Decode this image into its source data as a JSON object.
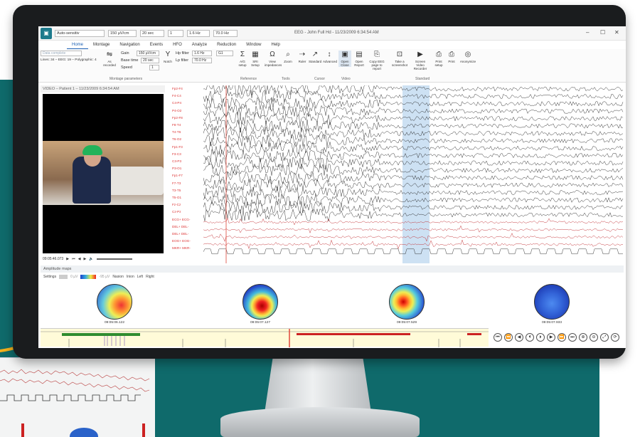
{
  "window": {
    "title": "EEG - John Full Hd - 11/23/2009 6:34:54 AM",
    "controls": {
      "minimize": "–",
      "maximize": "☐",
      "close": "✕"
    }
  },
  "toolbar": {
    "montage_combo": "Auto-sensitiv",
    "sensitivity_combo": "150 µV/cm",
    "timebase_combo": "20 sec",
    "speed_combo": "1",
    "lowfreq_combo": "1.6 Hz",
    "highfreq_combo": "70.0 Hz"
  },
  "tabs": [
    "Home",
    "Montage",
    "Navigation",
    "Events",
    "HFO",
    "Analyze",
    "Reduction",
    "Window",
    "Help"
  ],
  "ribbon": {
    "data_complete": "Data complete",
    "lines_info": "Lines: 34 – EEG: 19 – Polygraphic: 4",
    "as_recorded": "As recorded",
    "gain_label": "Gain",
    "gain_value": "150 µV/cm",
    "basetime_label": "Base time",
    "basetime_value": "20 sec",
    "speed_label": "Speed",
    "speed_value": "1",
    "notch_label": "Notch",
    "hp_label": "Hp filter",
    "hp_value": "1.6 Hz",
    "lp_label": "Lp filter",
    "lp_value": "70.0 Hz",
    "ref_value": "G1",
    "group_montage": "Montage parameters",
    "group_reference": "Reference",
    "group_tools": "Tools",
    "group_cursor": "Cursor",
    "group_video": "Video",
    "group_standard": "Standard",
    "buttons": [
      {
        "label": "A/G setup",
        "icon": "sigma-icon"
      },
      {
        "label": "SRI Setup",
        "icon": "grid-icon"
      },
      {
        "label": "View impedances",
        "icon": "omega-icon"
      },
      {
        "label": "Zoom",
        "icon": "magnifier-icon"
      },
      {
        "label": "Ruler",
        "icon": "ruler-icon"
      },
      {
        "label": "Standard",
        "icon": "cursor-icon"
      },
      {
        "label": "Advanced",
        "icon": "cursor-plus-icon"
      },
      {
        "label": "Open Close",
        "icon": "video-icon"
      },
      {
        "label": "Open Report",
        "icon": "report-icon"
      },
      {
        "label": "Copy EEG page to report",
        "icon": "copy-page-icon"
      },
      {
        "label": "Take a screenshot",
        "icon": "screenshot-icon"
      },
      {
        "label": "Screen Video Recorder",
        "icon": "recorder-icon"
      },
      {
        "label": "Print setup",
        "icon": "print-setup-icon"
      },
      {
        "label": "Print",
        "icon": "print-icon"
      },
      {
        "label": "Anonymize",
        "icon": "anonymize-icon"
      }
    ]
  },
  "video": {
    "header": "VIDEO – Patient 1 – 11/23/2009 6:34:54 AM",
    "time": "09:05:46.073"
  },
  "eeg": {
    "channels": [
      "Fp2-F4",
      "F4-C4",
      "C4-P4",
      "P4-O2",
      "Fp2-F8",
      "F8-T4",
      "T4-T6",
      "T6-O2",
      "Fp1-F3",
      "F3-C3",
      "C3-P3",
      "P3-O1",
      "Fp1-F7",
      "F7-T3",
      "T3-T5",
      "T5-O1",
      "Fz-Cz",
      "Cz-Pz",
      "ECG+ ECG-",
      "DEL+ DEL-",
      "DEL+ DEL-",
      "EOG+ EOG-",
      "MKR+ MKR-"
    ],
    "colors": {
      "eeg": "#222222",
      "label": "#dd3333",
      "poly": "#c0282d",
      "highlight": "#6fa8dc",
      "cursor": "#e0463a"
    }
  },
  "amplitude_maps": {
    "header": "Amplitude maps",
    "settings_label": "Settings",
    "scale_min": "0 µV",
    "scale_max": "-95 µV",
    "views": [
      "Nasion",
      "Inion",
      "Left",
      "Right"
    ],
    "times": [
      "09:05:06.122",
      "09:05:07.127",
      "09:05:07.529",
      "09:05:07.933"
    ]
  },
  "navigation": {
    "buttons": [
      "⏮",
      "⏪",
      "◀",
      "⏴",
      "⏵",
      "▶",
      "⏩",
      "⏭",
      "⊕",
      "⊖",
      "⤢",
      "⟳"
    ]
  }
}
